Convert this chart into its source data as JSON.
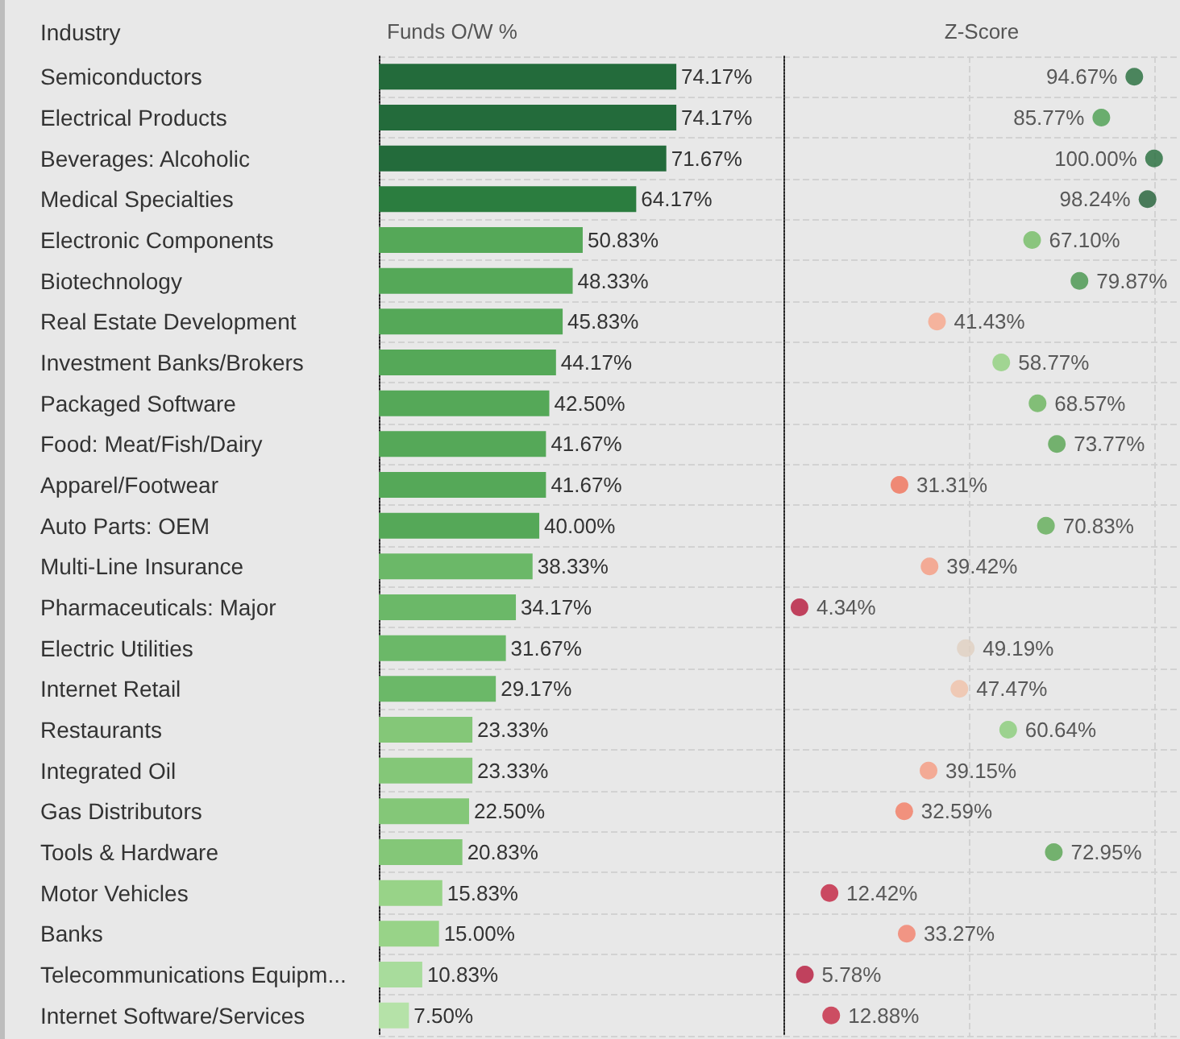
{
  "chart_data": [
    {
      "type": "bar",
      "orientation": "horizontal",
      "title": "Funds O/W %",
      "ylabel": "Industry",
      "categories": [
        "Semiconductors",
        "Electrical Products",
        "Beverages: Alcoholic",
        "Medical Specialties",
        "Electronic Components",
        "Biotechnology",
        "Real Estate Development",
        "Investment Banks/Brokers",
        "Packaged Software",
        "Food: Meat/Fish/Dairy",
        "Apparel/Footwear",
        "Auto Parts: OEM",
        "Multi-Line Insurance",
        "Pharmaceuticals: Major",
        "Electric Utilities",
        "Internet Retail",
        "Restaurants",
        "Integrated Oil",
        "Gas Distributors",
        "Tools & Hardware",
        "Motor Vehicles",
        "Banks",
        "Telecommunications Equipm...",
        "Internet Software/Services"
      ],
      "values": [
        74.17,
        74.17,
        71.67,
        64.17,
        50.83,
        48.33,
        45.83,
        44.17,
        42.5,
        41.67,
        41.67,
        40.0,
        38.33,
        34.17,
        31.67,
        29.17,
        23.33,
        23.33,
        22.5,
        20.83,
        15.83,
        15.0,
        10.83,
        7.5
      ],
      "value_labels": [
        "74.17%",
        "74.17%",
        "71.67%",
        "64.17%",
        "50.83%",
        "48.33%",
        "45.83%",
        "44.17%",
        "42.50%",
        "41.67%",
        "41.67%",
        "40.00%",
        "38.33%",
        "34.17%",
        "31.67%",
        "29.17%",
        "23.33%",
        "23.33%",
        "22.50%",
        "20.83%",
        "15.83%",
        "15.00%",
        "10.83%",
        "7.50%"
      ],
      "colors": [
        "#236b3b",
        "#236b3b",
        "#236b3b",
        "#2b7d3f",
        "#55a858",
        "#55a858",
        "#55a858",
        "#55a858",
        "#55a858",
        "#55a858",
        "#55a858",
        "#55a858",
        "#6bb868",
        "#6bb868",
        "#6bb868",
        "#6bb868",
        "#84c778",
        "#84c778",
        "#84c778",
        "#84c778",
        "#98d388",
        "#98d388",
        "#a8dc9c",
        "#b5e2a8"
      ],
      "grid": "y",
      "tick_labels": "y"
    },
    {
      "type": "scatter",
      "orientation": "horizontal",
      "title": "Z-Score",
      "marker": "circle",
      "categories": [
        null,
        null,
        null,
        null,
        null,
        null,
        null,
        null,
        null,
        null,
        null,
        null,
        null,
        null,
        null,
        null,
        null,
        null,
        null,
        null,
        null,
        null,
        null,
        null
      ],
      "values": [
        94.67,
        85.77,
        100.0,
        98.24,
        67.1,
        79.87,
        41.43,
        58.77,
        68.57,
        73.77,
        31.31,
        70.83,
        39.42,
        4.34,
        49.19,
        47.47,
        60.64,
        39.15,
        32.59,
        72.95,
        12.42,
        33.27,
        5.78,
        12.88
      ],
      "value_labels": [
        "94.67%",
        "85.77%",
        "100.00%",
        "98.24%",
        "67.10%",
        "79.87%",
        "41.43%",
        "58.77%",
        "68.57%",
        "73.77%",
        "31.31%",
        "70.83%",
        "39.42%",
        "4.34%",
        "49.19%",
        "47.47%",
        "60.64%",
        "39.15%",
        "32.59%",
        "72.95%",
        "12.42%",
        "33.27%",
        "5.78%",
        "12.88%"
      ],
      "colors": [
        "#236b3a",
        "#4a9e4f",
        "#236b3a",
        "#1f5e34",
        "#72bb63",
        "#43944a",
        "#f7a58a",
        "#8fd07c",
        "#68b35a",
        "#55a34f",
        "#f07058",
        "#5fab55",
        "#f59a7f",
        "#b5173a",
        "#e0d0c0",
        "#f0c0a8",
        "#88cc78",
        "#f59a7f",
        "#f27a62",
        "#55a34f",
        "#c2203e",
        "#f2806a",
        "#b5173a",
        "#c42540"
      ],
      "xlim": [
        0,
        107
      ],
      "xticks": [
        {
          "value": 0,
          "label": null
        },
        {
          "value": 50,
          "label": null
        },
        {
          "value": 100,
          "label": null
        }
      ],
      "grid": true,
      "tick_labels": false
    }
  ]
}
